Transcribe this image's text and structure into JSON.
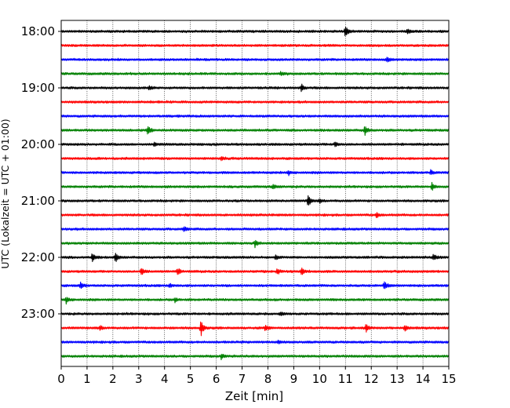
{
  "chart_data": {
    "type": "line",
    "xlabel": "Zeit  [min]",
    "ylabel": "UTC (Lokalzeit = UTC + 01:00)",
    "xlim": [
      0,
      15
    ],
    "x_ticks": [
      0,
      1,
      2,
      3,
      4,
      5,
      6,
      7,
      8,
      9,
      10,
      11,
      12,
      13,
      14,
      15
    ],
    "x_tick_labels": [
      "0",
      "1",
      "2",
      "3",
      "4",
      "5",
      "6",
      "7",
      "8",
      "9",
      "10",
      "11",
      "12",
      "13",
      "14",
      "15"
    ],
    "y_tick_labels": [
      "18:00",
      "19:00",
      "20:00",
      "21:00",
      "22:00",
      "23:00"
    ],
    "y_tick_trace_index": [
      0,
      4,
      8,
      12,
      16,
      20
    ],
    "grid": "vertical-dotted",
    "colors": [
      "#000000",
      "#ff0000",
      "#0000ff",
      "#008000"
    ],
    "series": [
      {
        "start": "18:00",
        "color": "#000000",
        "events": [
          {
            "x": 11.0,
            "amp": 1.0
          },
          {
            "x": 13.4,
            "amp": 0.45
          }
        ]
      },
      {
        "start": "18:15",
        "color": "#ff0000",
        "events": []
      },
      {
        "start": "18:30",
        "color": "#0000ff",
        "events": [
          {
            "x": 12.6,
            "amp": 0.35
          }
        ]
      },
      {
        "start": "18:45",
        "color": "#008000",
        "events": [
          {
            "x": 8.5,
            "amp": 0.3
          }
        ]
      },
      {
        "start": "19:00",
        "color": "#000000",
        "events": [
          {
            "x": 9.3,
            "amp": 0.6
          },
          {
            "x": 3.4,
            "amp": 0.3
          }
        ]
      },
      {
        "start": "19:15",
        "color": "#ff0000",
        "events": []
      },
      {
        "start": "19:30",
        "color": "#0000ff",
        "events": []
      },
      {
        "start": "19:45",
        "color": "#008000",
        "events": [
          {
            "x": 3.35,
            "amp": 0.8
          },
          {
            "x": 11.75,
            "amp": 0.8
          }
        ]
      },
      {
        "start": "20:00",
        "color": "#000000",
        "events": [
          {
            "x": 10.6,
            "amp": 0.45
          },
          {
            "x": 3.6,
            "amp": 0.35
          }
        ]
      },
      {
        "start": "20:15",
        "color": "#ff0000",
        "events": [
          {
            "x": 6.2,
            "amp": 0.3
          }
        ]
      },
      {
        "start": "20:30",
        "color": "#0000ff",
        "events": [
          {
            "x": 8.8,
            "amp": 0.35
          },
          {
            "x": 14.3,
            "amp": 0.35
          }
        ]
      },
      {
        "start": "20:45",
        "color": "#008000",
        "events": [
          {
            "x": 14.35,
            "amp": 0.6
          },
          {
            "x": 8.2,
            "amp": 0.35
          }
        ]
      },
      {
        "start": "21:00",
        "color": "#000000",
        "events": [
          {
            "x": 9.55,
            "amp": 1.0
          },
          {
            "x": 10.0,
            "amp": 0.3
          }
        ]
      },
      {
        "start": "21:15",
        "color": "#ff0000",
        "events": [
          {
            "x": 12.2,
            "amp": 0.4
          }
        ]
      },
      {
        "start": "21:30",
        "color": "#0000ff",
        "events": [
          {
            "x": 4.75,
            "amp": 0.45
          }
        ]
      },
      {
        "start": "21:45",
        "color": "#008000",
        "events": [
          {
            "x": 7.5,
            "amp": 0.55
          }
        ]
      },
      {
        "start": "22:00",
        "color": "#000000",
        "events": [
          {
            "x": 1.2,
            "amp": 0.65
          },
          {
            "x": 2.1,
            "amp": 0.75
          },
          {
            "x": 14.4,
            "amp": 0.55
          },
          {
            "x": 8.3,
            "amp": 0.3
          }
        ]
      },
      {
        "start": "22:15",
        "color": "#ff0000",
        "events": [
          {
            "x": 3.1,
            "amp": 0.6
          },
          {
            "x": 4.5,
            "amp": 0.55
          },
          {
            "x": 8.35,
            "amp": 0.5
          },
          {
            "x": 9.3,
            "amp": 0.65
          }
        ]
      },
      {
        "start": "22:30",
        "color": "#0000ff",
        "events": [
          {
            "x": 0.75,
            "amp": 0.55
          },
          {
            "x": 12.5,
            "amp": 0.75
          },
          {
            "x": 4.2,
            "amp": 0.3
          }
        ]
      },
      {
        "start": "22:45",
        "color": "#008000",
        "events": [
          {
            "x": 0.2,
            "amp": 0.6
          },
          {
            "x": 4.4,
            "amp": 0.35
          }
        ]
      },
      {
        "start": "23:00",
        "color": "#000000",
        "events": [
          {
            "x": 8.5,
            "amp": 0.3
          }
        ]
      },
      {
        "start": "23:15",
        "color": "#ff0000",
        "events": [
          {
            "x": 5.4,
            "amp": 1.25
          },
          {
            "x": 7.9,
            "amp": 0.55
          },
          {
            "x": 11.8,
            "amp": 0.55
          },
          {
            "x": 13.3,
            "amp": 0.45
          },
          {
            "x": 1.5,
            "amp": 0.4
          }
        ]
      },
      {
        "start": "23:30",
        "color": "#0000ff",
        "events": [
          {
            "x": 8.4,
            "amp": 0.3
          }
        ]
      },
      {
        "start": "23:45",
        "color": "#008000",
        "events": [
          {
            "x": 6.2,
            "amp": 0.45
          }
        ]
      }
    ]
  }
}
